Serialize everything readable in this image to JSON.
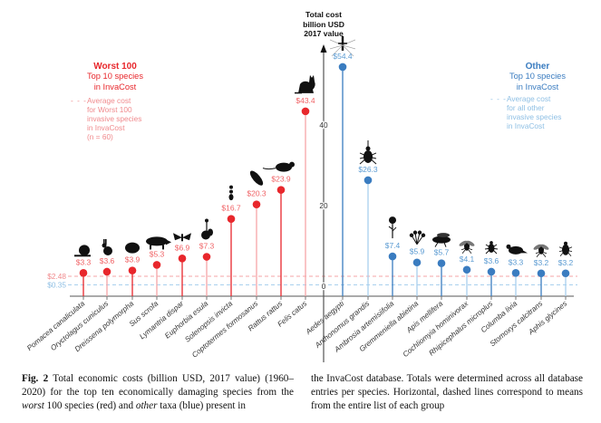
{
  "chart_data": {
    "type": "bar",
    "subtype": "lollipop",
    "title": "Total cost billion USD 2017 value",
    "axis_title_lines": [
      "Total cost",
      "billion USD",
      "2017 value"
    ],
    "ylabel": "Total cost (billion USD, 2017 value)",
    "ylim": [
      0,
      60
    ],
    "yticks": [
      0,
      20,
      40
    ],
    "grid": false,
    "groups": [
      {
        "name": "Worst 100",
        "color": "#e8272c",
        "legend_title": "Worst 100",
        "legend_lines": [
          "Top 10 species",
          "in InvaCost"
        ],
        "average_label": "$2.48",
        "average_value": 2.48,
        "average_text_lines": [
          "Average cost",
          "for Worst 100",
          "invasive species",
          "in InvaCost",
          "(n = 60)"
        ],
        "categories": [
          "Pomacea canaliculata",
          "Oryctolagus cuniculus",
          "Dreissena polymorpha",
          "Sus scrofa",
          "Lymantria dispar",
          "Euphorbia esula",
          "Solenopsis invicta",
          "Coptotermes formosanus",
          "Rattus rattus",
          "Felis catus"
        ],
        "values": [
          3.3,
          3.6,
          3.9,
          5.3,
          6.9,
          7.3,
          16.7,
          20.3,
          23.9,
          43.4
        ],
        "value_labels": [
          "$3.3",
          "$3.6",
          "$3.9",
          "$5.3",
          "$6.9",
          "$7.3",
          "$16.7",
          "$20.3",
          "$23.9",
          "$43.4"
        ],
        "icons": [
          "snail-icon",
          "rabbit-icon",
          "mussel-icon",
          "boar-icon",
          "moth-icon",
          "spurge-plant-icon",
          "ant-icon",
          "termite-icon",
          "rat-icon",
          "cat-icon"
        ]
      },
      {
        "name": "Other",
        "color": "#3a7cc0",
        "legend_title": "Other",
        "legend_lines": [
          "Top 10 species",
          "in InvaCost"
        ],
        "average_label": "$0.35",
        "average_value": 0.35,
        "average_text_lines": [
          "Average cost",
          "for all other",
          "invasive species",
          "in InvaCost"
        ],
        "categories": [
          "Aedes aegypti",
          "Anthonomus grandis",
          "Ambrosia artemisiifolia",
          "Gremmeniella abietina",
          "Apis mellifera",
          "Cochliomyia hominivorax",
          "Rhipicephalus microplus",
          "Columba livia",
          "Stomoxys calcitrans",
          "Aphis glycines"
        ],
        "values": [
          54.4,
          26.3,
          7.4,
          5.9,
          5.7,
          4.1,
          3.6,
          3.3,
          3.2,
          3.2
        ],
        "value_labels": [
          "$54.4",
          "$26.3",
          "$7.4",
          "$5.9",
          "$5.7",
          "$4.1",
          "$3.6",
          "$3.3",
          "$3.2",
          "$3.2"
        ],
        "icons": [
          "mosquito-icon",
          "weevil-icon",
          "ragweed-icon",
          "fungus-icon",
          "bee-icon",
          "fly-icon",
          "tick-icon",
          "pigeon-icon",
          "stable-fly-icon",
          "aphid-icon"
        ]
      }
    ]
  },
  "caption": {
    "label": "Fig. 2",
    "left_text": " Total economic costs (billion USD, 2017 value) (1960–2020) for the top ten economically damaging species from the ",
    "worst": "worst",
    "mid_text": " 100 species (red) and ",
    "other": "other",
    "end_text": " taxa (blue) present in",
    "right_text": "the InvaCost database. Totals were determined across all database entries per species. Horizontal, dashed lines correspond to means from the entire list of each group"
  }
}
